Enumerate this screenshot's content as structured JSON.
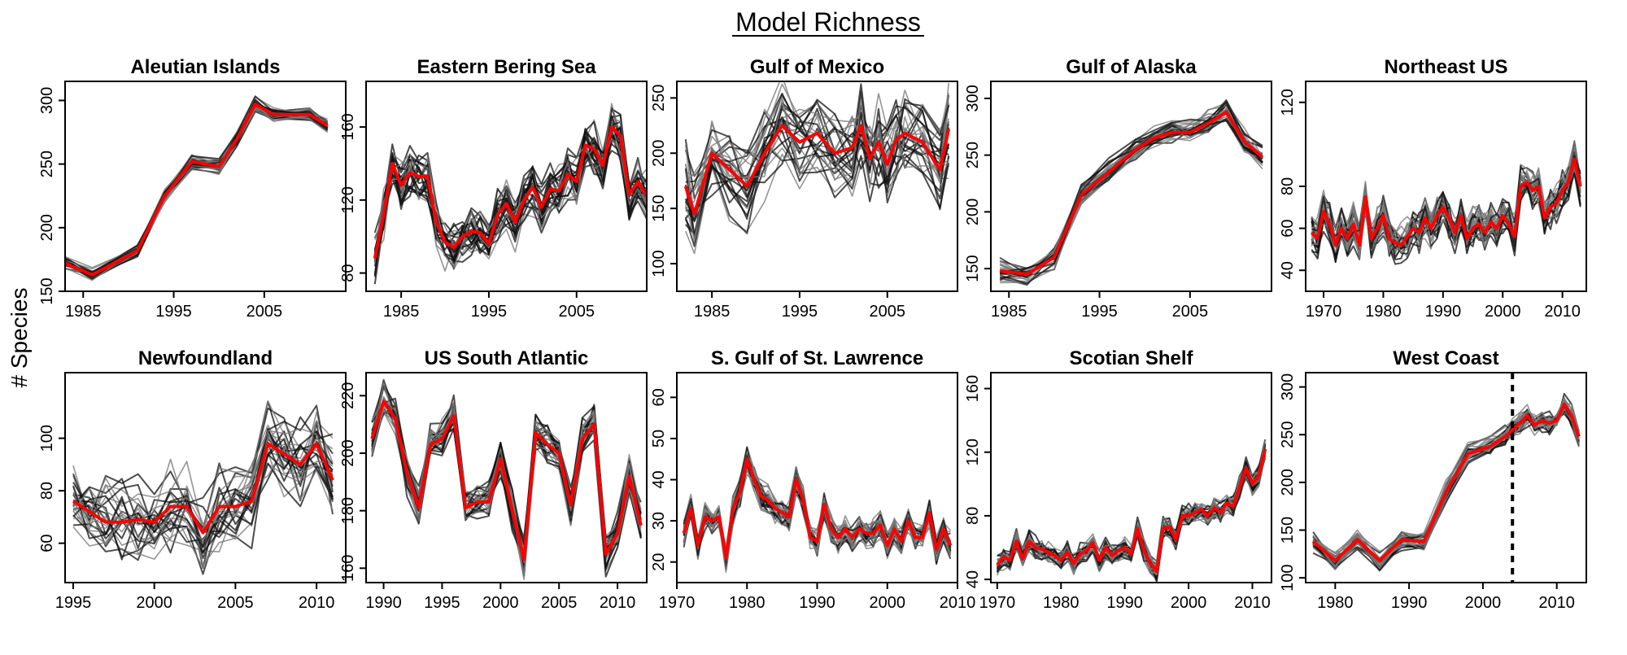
{
  "figure": {
    "title": "Model Richness",
    "ylabel": "# Species"
  },
  "chart_data": [
    {
      "type": "line",
      "title": "Aleutian Islands",
      "xlim": [
        1983,
        2014
      ],
      "ylim": [
        150,
        315
      ],
      "xticks": [
        1985,
        1995,
        2005
      ],
      "yticks": [
        150,
        200,
        250,
        300
      ],
      "spread": 5,
      "series": [
        {
          "color": "#ff0000",
          "x": [
            1983,
            1986,
            1991,
            1994,
            1997,
            2000,
            2002,
            2004,
            2006,
            2010,
            2012
          ],
          "y": [
            172,
            163,
            182,
            225,
            252,
            248,
            270,
            297,
            289,
            289,
            280
          ]
        }
      ]
    },
    {
      "type": "line",
      "title": "Eastern Bering Sea",
      "xlim": [
        1981,
        2013
      ],
      "ylim": [
        70,
        185
      ],
      "xticks": [
        1985,
        1995,
        2005
      ],
      "yticks": [
        80,
        120,
        160
      ],
      "spread": 12,
      "series": [
        {
          "color": "#ff0000",
          "x": [
            1982,
            1983,
            1984,
            1985,
            1986,
            1987,
            1988,
            1989,
            1990,
            1991,
            1992,
            1993,
            1994,
            1995,
            1996,
            1997,
            1998,
            1999,
            2000,
            2001,
            2002,
            2003,
            2004,
            2005,
            2006,
            2007,
            2008,
            2009,
            2010,
            2011,
            2012,
            2013
          ],
          "y": [
            88,
            112,
            140,
            128,
            135,
            133,
            133,
            108,
            97,
            94,
            100,
            103,
            102,
            96,
            112,
            118,
            108,
            120,
            127,
            116,
            126,
            125,
            134,
            130,
            150,
            148,
            139,
            160,
            155,
            123,
            130,
            122
          ]
        }
      ]
    },
    {
      "type": "line",
      "title": "Gulf of Mexico",
      "xlim": [
        1981,
        2013
      ],
      "ylim": [
        75,
        265
      ],
      "xticks": [
        1985,
        1995,
        2005
      ],
      "yticks": [
        100,
        150,
        200,
        250
      ],
      "spread": 35,
      "series": [
        {
          "color": "#ff0000",
          "x": [
            1982,
            1983,
            1985,
            1987,
            1989,
            1991,
            1993,
            1995,
            1997,
            1999,
            2001,
            2002,
            2003,
            2004,
            2005,
            2006,
            2007,
            2009,
            2011,
            2012
          ],
          "y": [
            170,
            145,
            200,
            185,
            170,
            200,
            225,
            210,
            218,
            200,
            205,
            225,
            195,
            210,
            190,
            212,
            218,
            210,
            185,
            222
          ]
        }
      ]
    },
    {
      "type": "line",
      "title": "Gulf of Alaska",
      "xlim": [
        1983,
        2014
      ],
      "ylim": [
        130,
        315
      ],
      "xticks": [
        1985,
        1995,
        2005
      ],
      "yticks": [
        150,
        200,
        250,
        300
      ],
      "spread": 9,
      "series": [
        {
          "color": "#ff0000",
          "x": [
            1984,
            1987,
            1990,
            1993,
            1996,
            1999,
            2001,
            2003,
            2005,
            2007,
            2009,
            2011,
            2013
          ],
          "y": [
            148,
            145,
            160,
            215,
            235,
            255,
            265,
            270,
            270,
            278,
            288,
            262,
            248
          ]
        }
      ]
    },
    {
      "type": "line",
      "title": "Northeast US",
      "xlim": [
        1967,
        2014
      ],
      "ylim": [
        30,
        130
      ],
      "xticks": [
        1970,
        1980,
        1990,
        2000,
        2010
      ],
      "yticks": [
        40,
        60,
        80,
        120
      ],
      "spread": 8,
      "series": [
        {
          "color": "#ff0000",
          "x": [
            1968,
            1969,
            1970,
            1971,
            1972,
            1973,
            1974,
            1975,
            1976,
            1977,
            1978,
            1979,
            1980,
            1981,
            1982,
            1983,
            1984,
            1985,
            1986,
            1987,
            1988,
            1989,
            1990,
            1991,
            1992,
            1993,
            1994,
            1995,
            1996,
            1997,
            1998,
            1999,
            2000,
            2001,
            2002,
            2003,
            2004,
            2005,
            2006,
            2007,
            2008,
            2009,
            2010,
            2011,
            2012,
            2013
          ],
          "y": [
            58,
            55,
            68,
            62,
            52,
            60,
            55,
            62,
            52,
            75,
            55,
            60,
            66,
            55,
            53,
            52,
            56,
            60,
            58,
            65,
            60,
            66,
            70,
            65,
            58,
            66,
            55,
            60,
            62,
            58,
            63,
            60,
            66,
            62,
            56,
            80,
            82,
            78,
            80,
            65,
            70,
            72,
            78,
            82,
            93,
            80
          ]
        }
      ]
    },
    {
      "type": "line",
      "title": "Newfoundland",
      "xlim": [
        1994.5,
        2011.8
      ],
      "ylim": [
        45,
        125
      ],
      "xticks": [
        1995,
        2000,
        2005,
        2010
      ],
      "yticks": [
        60,
        80,
        100
      ],
      "spread": 14,
      "series": [
        {
          "color": "#ff0000",
          "x": [
            1995,
            1996,
            1997,
            1998,
            1999,
            2000,
            2001,
            2002,
            2003,
            2004,
            2005,
            2006,
            2007,
            2008,
            2009,
            2010,
            2011
          ],
          "y": [
            76,
            72,
            68,
            68,
            69,
            68,
            74,
            74,
            64,
            74,
            74,
            76,
            98,
            94,
            90,
            98,
            84
          ]
        }
      ]
    },
    {
      "type": "line",
      "title": "US South Atlantic",
      "xlim": [
        1988.5,
        2012.5
      ],
      "ylim": [
        155,
        228
      ],
      "xticks": [
        1990,
        1995,
        2000,
        2005,
        2010
      ],
      "yticks": [
        160,
        180,
        200,
        220
      ],
      "spread": 6,
      "series": [
        {
          "color": "#ff0000",
          "x": [
            1989,
            1990,
            1991,
            1992,
            1993,
            1994,
            1995,
            1996,
            1997,
            1998,
            1999,
            2000,
            2001,
            2002,
            2003,
            2004,
            2005,
            2006,
            2007,
            2008,
            2009,
            2010,
            2011,
            2012
          ],
          "y": [
            205,
            218,
            212,
            193,
            181,
            203,
            205,
            213,
            181,
            183,
            183,
            198,
            180,
            163,
            207,
            203,
            200,
            182,
            205,
            210,
            165,
            172,
            192,
            175
          ]
        }
      ]
    },
    {
      "type": "line",
      "title": "S. Gulf of St. Lawrence",
      "xlim": [
        1970,
        2010
      ],
      "ylim": [
        15,
        66
      ],
      "xticks": [
        1970,
        1980,
        1990,
        2000,
        2010
      ],
      "yticks": [
        20,
        30,
        40,
        50,
        60
      ],
      "spread": 3,
      "series": [
        {
          "color": "#ff0000",
          "x": [
            1971,
            1972,
            1973,
            1974,
            1975,
            1976,
            1977,
            1978,
            1979,
            1980,
            1981,
            1982,
            1983,
            1984,
            1985,
            1986,
            1987,
            1988,
            1989,
            1990,
            1991,
            1992,
            1993,
            1994,
            1995,
            1996,
            1997,
            1998,
            1999,
            2000,
            2001,
            2002,
            2003,
            2004,
            2005,
            2006,
            2007,
            2008,
            2009
          ],
          "y": [
            27,
            33,
            24,
            31,
            30,
            31,
            21,
            33,
            37,
            45,
            40,
            36,
            35,
            33,
            32,
            31,
            40,
            35,
            26,
            25,
            34,
            28,
            26,
            28,
            26,
            28,
            27,
            27,
            29,
            24,
            28,
            25,
            30,
            26,
            26,
            32,
            23,
            28,
            24
          ]
        }
      ]
    },
    {
      "type": "line",
      "title": "Scotian Shelf",
      "xlim": [
        1969,
        2013
      ],
      "ylim": [
        38,
        170
      ],
      "xticks": [
        1970,
        1980,
        1990,
        2000,
        2010
      ],
      "yticks": [
        40,
        80,
        120,
        160
      ],
      "spread": 6,
      "series": [
        {
          "color": "#ff0000",
          "x": [
            1970,
            1971,
            1972,
            1973,
            1974,
            1975,
            1976,
            1977,
            1978,
            1979,
            1980,
            1981,
            1982,
            1983,
            1984,
            1985,
            1986,
            1987,
            1988,
            1989,
            1990,
            1991,
            1992,
            1993,
            1994,
            1995,
            1996,
            1997,
            1998,
            1999,
            2000,
            2001,
            2002,
            2003,
            2004,
            2005,
            2006,
            2007,
            2008,
            2009,
            2010,
            2011,
            2012
          ],
          "y": [
            49,
            54,
            52,
            64,
            53,
            64,
            60,
            59,
            57,
            55,
            52,
            57,
            50,
            56,
            58,
            63,
            52,
            60,
            55,
            58,
            60,
            56,
            72,
            58,
            50,
            45,
            72,
            73,
            65,
            80,
            80,
            82,
            84,
            80,
            85,
            82,
            88,
            86,
            98,
            110,
            100,
            105,
            122
          ]
        }
      ]
    },
    {
      "type": "line",
      "title": "West Coast",
      "xlim": [
        1976,
        2014
      ],
      "ylim": [
        95,
        315
      ],
      "xticks": [
        1980,
        1990,
        2000,
        2010
      ],
      "yticks": [
        100,
        150,
        200,
        250,
        300
      ],
      "spread": 10,
      "vline": 2004,
      "series": [
        {
          "color": "#ff0000",
          "x": [
            1977,
            1980,
            1983,
            1986,
            1989,
            1992,
            1995,
            1998,
            2001,
            2003,
            2004,
            2005,
            2006,
            2007,
            2008,
            2009,
            2010,
            2011,
            2012,
            2013
          ],
          "y": [
            138,
            118,
            140,
            118,
            140,
            138,
            190,
            230,
            238,
            248,
            255,
            262,
            270,
            260,
            265,
            262,
            265,
            282,
            270,
            248
          ]
        }
      ]
    }
  ]
}
